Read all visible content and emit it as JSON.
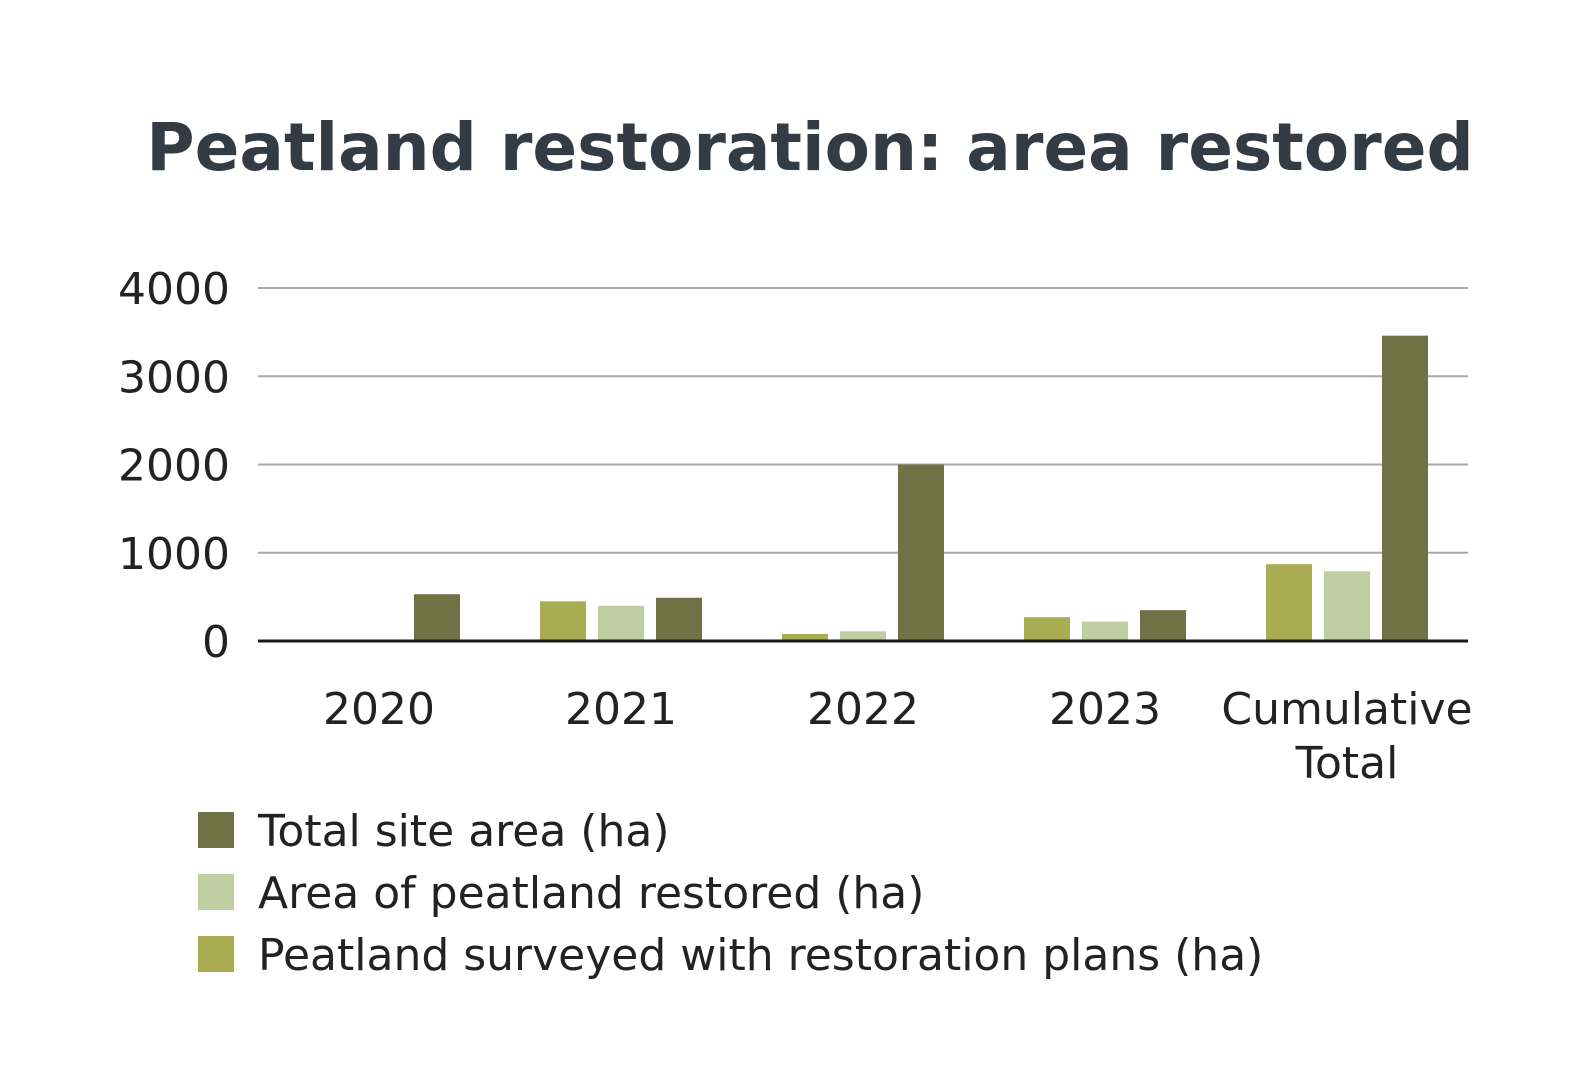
{
  "chart_data": {
    "type": "bar",
    "title": "Peatland restoration: area restored",
    "categories": [
      "2020",
      "2021",
      "2022",
      "2023",
      "Cumulative Total"
    ],
    "series": [
      {
        "name": "Peatland surveyed with restoration plans (ha)",
        "color": "#aaac53",
        "values": [
          0,
          450,
          80,
          270,
          870
        ]
      },
      {
        "name": "Area of peatland restored (ha)",
        "color": "#bfcea0",
        "values": [
          0,
          400,
          110,
          220,
          790
        ]
      },
      {
        "name": "Total site area (ha)",
        "color": "#6e7244",
        "values": [
          530,
          490,
          2000,
          350,
          3460
        ]
      }
    ],
    "legend_order": [
      2,
      1,
      0
    ],
    "yticks": [
      "4000",
      "3000",
      "2000",
      "1000",
      "0"
    ],
    "ylim": [
      0,
      4000
    ],
    "grid": true,
    "legend_position": "bottom-left"
  }
}
